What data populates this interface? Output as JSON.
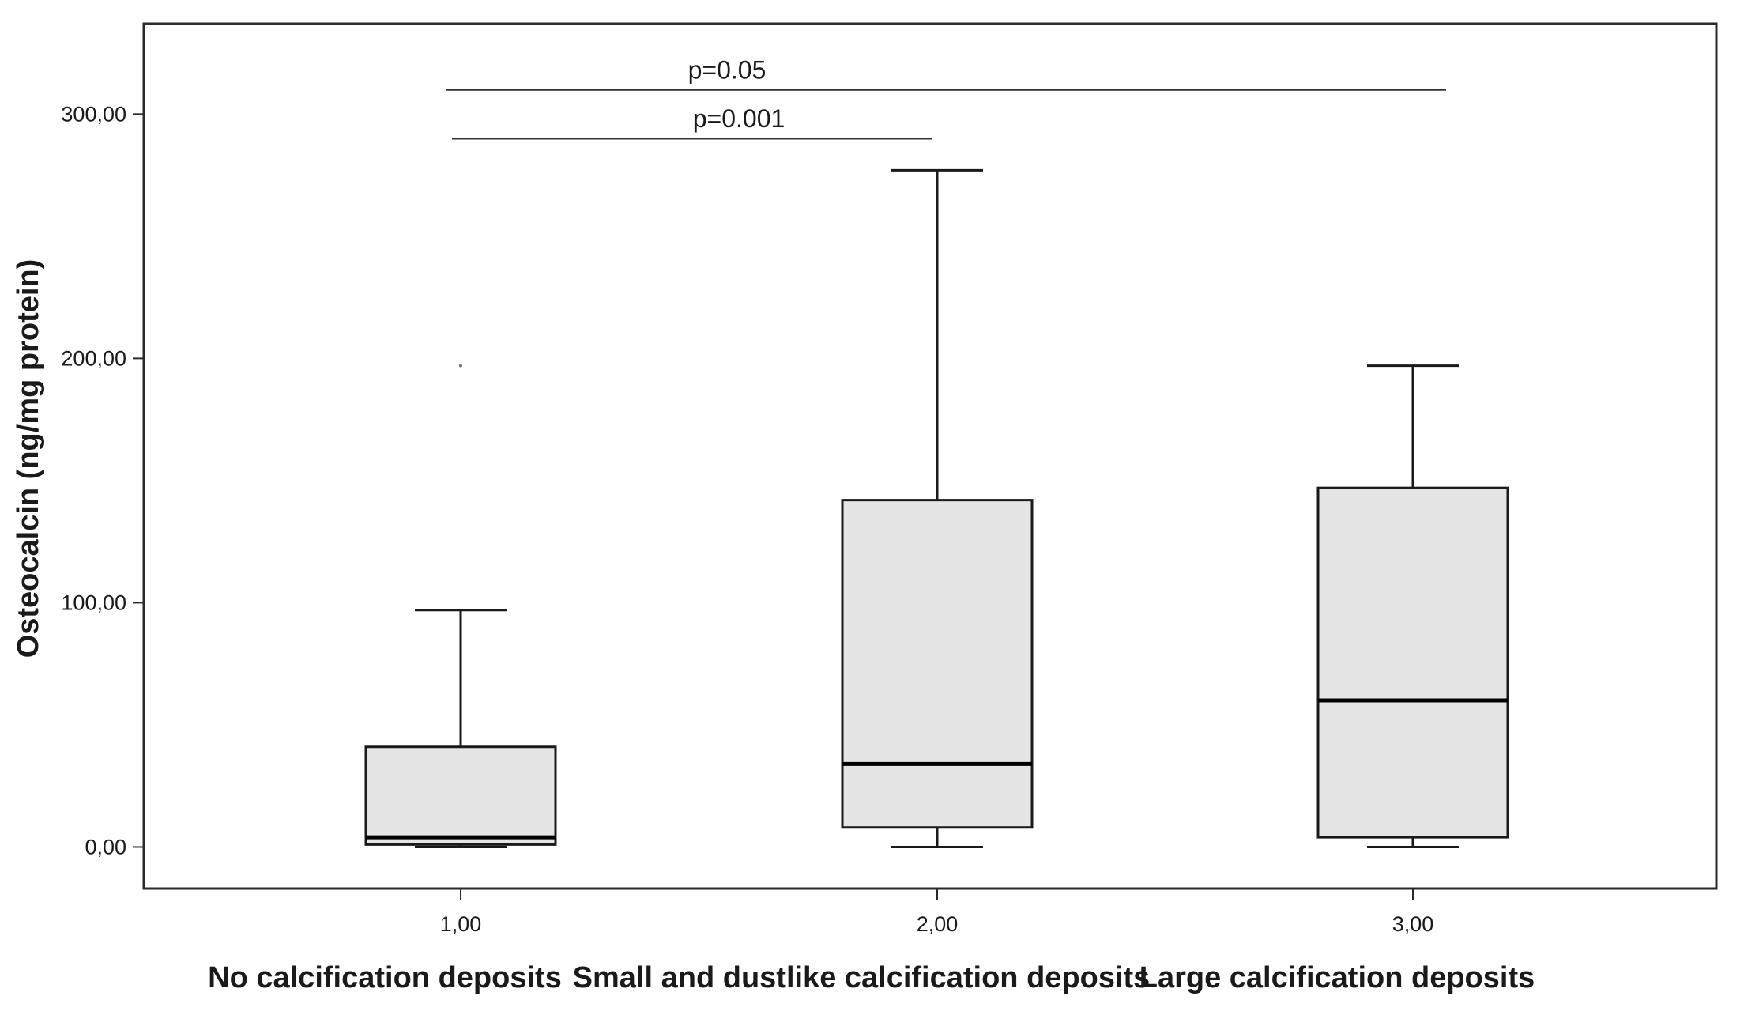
{
  "chart_data": {
    "type": "box",
    "title": "",
    "ylabel": "Osteocalcin (ng/mg protein)",
    "xlabel": "",
    "ylim": [
      -17,
      337
    ],
    "yticks": [
      {
        "value": 0,
        "label": "0,00"
      },
      {
        "value": 100,
        "label": "100,00"
      },
      {
        "value": 200,
        "label": "200,00"
      },
      {
        "value": 300,
        "label": "300,00"
      }
    ],
    "groups": [
      {
        "x_label": "1,00",
        "category": "No calcification deposits",
        "min": 0,
        "q1": 1,
        "median": 4,
        "q3": 41,
        "max": 97,
        "outliers": [
          197
        ]
      },
      {
        "x_label": "2,00",
        "category": "Small and dustlike calcification deposits",
        "min": 0,
        "q1": 8,
        "median": 34,
        "q3": 142,
        "max": 277,
        "outliers": []
      },
      {
        "x_label": "3,00",
        "category": "Large calcification deposits",
        "min": 0,
        "q1": 4,
        "median": 60,
        "q3": 147,
        "max": 197,
        "outliers": []
      }
    ],
    "annotations": [
      {
        "text": "p=0.05",
        "from_group": 0,
        "to_group": 2,
        "y": 310
      },
      {
        "text": "p=0.001",
        "from_group": 0,
        "to_group": 1,
        "y": 290
      }
    ],
    "grid": false,
    "legend": "none",
    "colors": {
      "box_fill": "#e5e5e5",
      "stroke": "#1a1a1a",
      "median": "#000000",
      "frame": "#2a2a2a"
    }
  }
}
